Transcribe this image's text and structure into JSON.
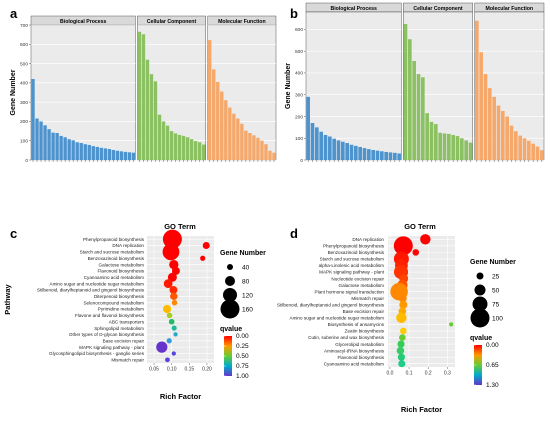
{
  "panel_labels": [
    "a",
    "b",
    "c",
    "d"
  ],
  "chart_data": [
    {
      "type": "bar",
      "panel": "a",
      "ylabel": "Gene Number",
      "ylim": [
        0,
        700
      ],
      "yticks": [
        0,
        100,
        200,
        300,
        400,
        500,
        600,
        700
      ],
      "grid": true,
      "groups": [
        {
          "name": "Biological Process",
          "color": "#4d94cf",
          "values": [
            420,
            215,
            200,
            180,
            160,
            142,
            140,
            125,
            118,
            108,
            102,
            92,
            88,
            82,
            78,
            72,
            68,
            63,
            60,
            57,
            52,
            48,
            45,
            42,
            40,
            38
          ]
        },
        {
          "name": "Cellular Component",
          "color": "#8cc163",
          "values": [
            665,
            652,
            520,
            445,
            408,
            235,
            200,
            178,
            150,
            138,
            130,
            125,
            118,
            108,
            98,
            92,
            80
          ]
        },
        {
          "name": "Molecular Function",
          "color": "#f5a86a",
          "values": [
            622,
            470,
            405,
            355,
            310,
            272,
            240,
            215,
            188,
            152,
            140,
            128,
            115,
            100,
            82,
            48,
            38
          ]
        }
      ]
    },
    {
      "type": "bar",
      "panel": "b",
      "ylabel": "Gene Number",
      "ylim": [
        0,
        680
      ],
      "yticks": [
        0,
        100,
        200,
        300,
        400,
        500,
        600
      ],
      "grid": true,
      "groups": [
        {
          "name": "Biological Process",
          "color": "#4d94cf",
          "values": [
            290,
            170,
            150,
            130,
            115,
            108,
            98,
            90,
            84,
            78,
            70,
            65,
            60,
            55,
            50,
            46,
            43,
            40,
            37,
            35,
            33,
            30
          ]
        },
        {
          "name": "Cellular Component",
          "color": "#8cc163",
          "values": [
            625,
            555,
            455,
            395,
            380,
            215,
            175,
            165,
            125,
            122,
            120,
            115,
            110,
            100,
            90,
            80
          ]
        },
        {
          "name": "Molecular Function",
          "color": "#f5a86a",
          "values": [
            640,
            495,
            395,
            330,
            290,
            250,
            225,
            200,
            158,
            132,
            112,
            100,
            88,
            75,
            62,
            45
          ]
        }
      ]
    },
    {
      "type": "scatter",
      "panel": "c",
      "title": "GO Term",
      "xlabel": "Rich Factor",
      "ylabel": "Pathway",
      "xlim": [
        0.03,
        0.22
      ],
      "xticks": [
        0.05,
        0.1,
        0.15,
        0.2
      ],
      "xtick_labels": [
        "0.05",
        "0.10",
        "0.15",
        "0.20"
      ],
      "size_legend": {
        "title": "Gene Number",
        "values": [
          40,
          80,
          120,
          160
        ]
      },
      "color_legend": {
        "title": "qvalue",
        "labels": [
          "0.00",
          "0.25",
          "0.50",
          "0.75",
          "1.00"
        ],
        "colors": [
          "#ff0000",
          "#ff9900",
          "#66cc33",
          "#00aacc",
          "#6633cc"
        ]
      },
      "rows": [
        {
          "term": "Phenylpropanoid biosynthesis",
          "x": 0.102,
          "size": 160,
          "color": "#ff0000"
        },
        {
          "term": "DNA replication",
          "x": 0.198,
          "size": 22,
          "color": "#ff0000"
        },
        {
          "term": "Starch and sucrose metabolism",
          "x": 0.098,
          "size": 125,
          "color": "#ff0000"
        },
        {
          "term": "Benzoxazinoid biosynthesis",
          "x": 0.188,
          "size": 12,
          "color": "#ff0000"
        },
        {
          "term": "Galactose metabolism",
          "x": 0.106,
          "size": 38,
          "color": "#ff0000"
        },
        {
          "term": "Flavonoid biosynthesis",
          "x": 0.112,
          "size": 28,
          "color": "#ff0000"
        },
        {
          "term": "Cyanoamino acid metabolism",
          "x": 0.102,
          "size": 36,
          "color": "#ff0000"
        },
        {
          "term": "Amino sugar and nucleotide sugar metabolism",
          "x": 0.09,
          "size": 34,
          "color": "#ff1a00"
        },
        {
          "term": "Stilbenoid, diarylheptanoid and gingerol biosynthesis",
          "x": 0.105,
          "size": 28,
          "color": "#ff2a00"
        },
        {
          "term": "Diterpenoid biosynthesis",
          "x": 0.106,
          "size": 24,
          "color": "#ff5500"
        },
        {
          "term": "Selenocompound metabolism",
          "x": 0.108,
          "size": 14,
          "color": "#ff8800"
        },
        {
          "term": "Pyrimidine metabolism",
          "x": 0.087,
          "size": 30,
          "color": "#ffbb00"
        },
        {
          "term": "Flavone and flavonol biosynthesis",
          "x": 0.094,
          "size": 14,
          "color": "#aacc22"
        },
        {
          "term": "ABC transporters",
          "x": 0.1,
          "size": 14,
          "color": "#22bb66"
        },
        {
          "term": "Sphingolipid metabolism",
          "x": 0.107,
          "size": 12,
          "color": "#22bb99"
        },
        {
          "term": "Other types of O-glycan biosynthesis",
          "x": 0.111,
          "size": 8,
          "color": "#22aacc"
        },
        {
          "term": "Base excision repair",
          "x": 0.093,
          "size": 12,
          "color": "#3399dd"
        },
        {
          "term": "MAPK signaling pathway - plant",
          "x": 0.072,
          "size": 55,
          "color": "#6633cc"
        },
        {
          "term": "Glycosphingolipid biosynthesis - ganglio series",
          "x": 0.106,
          "size": 8,
          "color": "#5544dd"
        },
        {
          "term": "Mismatch repair",
          "x": 0.088,
          "size": 10,
          "color": "#5544dd"
        }
      ]
    },
    {
      "type": "scatter",
      "panel": "d",
      "title": "GO Term",
      "xlabel": "Rich Factor",
      "xlim": [
        -0.01,
        0.34
      ],
      "xticks": [
        0.0,
        0.1,
        0.2,
        0.3
      ],
      "xtick_labels": [
        "0.0",
        "0.1",
        "0.2",
        "0.3"
      ],
      "size_legend": {
        "title": "Gene Number",
        "values": [
          25,
          50,
          75,
          100
        ]
      },
      "color_legend": {
        "title": "qvalue",
        "labels": [
          "0.00",
          "0.65",
          "1.30"
        ],
        "colors": [
          "#ff0000",
          "#ff9900",
          "#66cc33",
          "#00aacc",
          "#6633cc"
        ]
      },
      "rows": [
        {
          "term": "DNA replication",
          "x": 0.185,
          "size": 30,
          "color": "#ff0000"
        },
        {
          "term": "Phenylpropanoid biosynthesis",
          "x": 0.07,
          "size": 100,
          "color": "#ff0000"
        },
        {
          "term": "Benzoxazinoid biosynthesis",
          "x": 0.135,
          "size": 12,
          "color": "#ff0000"
        },
        {
          "term": "Starch and sucrose metabolism",
          "x": 0.06,
          "size": 62,
          "color": "#ff1500"
        },
        {
          "term": "alpha-Linolenic acid metabolism",
          "x": 0.06,
          "size": 45,
          "color": "#ff2200"
        },
        {
          "term": "MAPK signaling pathway - plant",
          "x": 0.058,
          "size": 55,
          "color": "#ff3300"
        },
        {
          "term": "Nucleotide excision repair",
          "x": 0.072,
          "size": 22,
          "color": "#ff4400"
        },
        {
          "term": "Galactose metabolism",
          "x": 0.065,
          "size": 30,
          "color": "#ff5500"
        },
        {
          "term": "Plant hormone signal transduction",
          "x": 0.048,
          "size": 85,
          "color": "#ff8800"
        },
        {
          "term": "Mismatch repair",
          "x": 0.067,
          "size": 18,
          "color": "#ff8800"
        },
        {
          "term": "Stilbenoid, diarylheptanoid and gingerol biosynthesis",
          "x": 0.07,
          "size": 18,
          "color": "#ff9900"
        },
        {
          "term": "Base excision repair",
          "x": 0.065,
          "size": 16,
          "color": "#ffaa00"
        },
        {
          "term": "Amino sugar and nucleotide sugar metabolism",
          "x": 0.06,
          "size": 30,
          "color": "#ffbb00"
        },
        {
          "term": "Biosynthesis of ansamycins",
          "x": 0.32,
          "size": 5,
          "color": "#66cc33"
        },
        {
          "term": "Zeatin biosynthesis",
          "x": 0.07,
          "size": 12,
          "color": "#ffcc00"
        },
        {
          "term": "Cutin, suberine and wax biosynthesis",
          "x": 0.065,
          "size": 12,
          "color": "#66cc33"
        },
        {
          "term": "Glycerolipid metabolism",
          "x": 0.058,
          "size": 14,
          "color": "#33cc55"
        },
        {
          "term": "Aminoacyl-tRNA biosynthesis",
          "x": 0.055,
          "size": 16,
          "color": "#33cc66"
        },
        {
          "term": "Flavonoid biosynthesis",
          "x": 0.06,
          "size": 14,
          "color": "#22cc77"
        },
        {
          "term": "Cyanoamino acid metabolism",
          "x": 0.062,
          "size": 14,
          "color": "#22cc88"
        }
      ]
    }
  ]
}
